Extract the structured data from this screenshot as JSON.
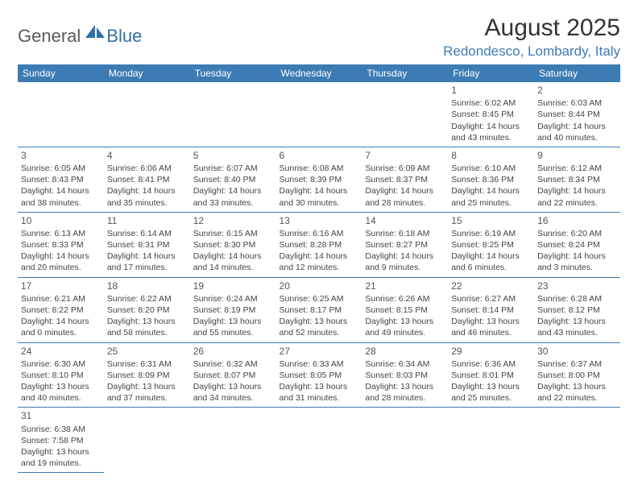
{
  "logo": {
    "general": "General",
    "blue": "Blue"
  },
  "title": "August 2025",
  "location": "Redondesco, Lombardy, Italy",
  "weekdays": [
    "Sunday",
    "Monday",
    "Tuesday",
    "Wednesday",
    "Thursday",
    "Friday",
    "Saturday"
  ],
  "colors": {
    "header_bg": "#3d7bb5",
    "header_fg": "#ffffff",
    "location_color": "#3d7bb5",
    "text_color": "#444444"
  },
  "startOffset": 5,
  "days": [
    {
      "n": "1",
      "sr": "6:02 AM",
      "ss": "8:45 PM",
      "dl": "14 hours and 43 minutes."
    },
    {
      "n": "2",
      "sr": "6:03 AM",
      "ss": "8:44 PM",
      "dl": "14 hours and 40 minutes."
    },
    {
      "n": "3",
      "sr": "6:05 AM",
      "ss": "8:43 PM",
      "dl": "14 hours and 38 minutes."
    },
    {
      "n": "4",
      "sr": "6:06 AM",
      "ss": "8:41 PM",
      "dl": "14 hours and 35 minutes."
    },
    {
      "n": "5",
      "sr": "6:07 AM",
      "ss": "8:40 PM",
      "dl": "14 hours and 33 minutes."
    },
    {
      "n": "6",
      "sr": "6:08 AM",
      "ss": "8:39 PM",
      "dl": "14 hours and 30 minutes."
    },
    {
      "n": "7",
      "sr": "6:09 AM",
      "ss": "8:37 PM",
      "dl": "14 hours and 28 minutes."
    },
    {
      "n": "8",
      "sr": "6:10 AM",
      "ss": "8:36 PM",
      "dl": "14 hours and 25 minutes."
    },
    {
      "n": "9",
      "sr": "6:12 AM",
      "ss": "8:34 PM",
      "dl": "14 hours and 22 minutes."
    },
    {
      "n": "10",
      "sr": "6:13 AM",
      "ss": "8:33 PM",
      "dl": "14 hours and 20 minutes."
    },
    {
      "n": "11",
      "sr": "6:14 AM",
      "ss": "8:31 PM",
      "dl": "14 hours and 17 minutes."
    },
    {
      "n": "12",
      "sr": "6:15 AM",
      "ss": "8:30 PM",
      "dl": "14 hours and 14 minutes."
    },
    {
      "n": "13",
      "sr": "6:16 AM",
      "ss": "8:28 PM",
      "dl": "14 hours and 12 minutes."
    },
    {
      "n": "14",
      "sr": "6:18 AM",
      "ss": "8:27 PM",
      "dl": "14 hours and 9 minutes."
    },
    {
      "n": "15",
      "sr": "6:19 AM",
      "ss": "8:25 PM",
      "dl": "14 hours and 6 minutes."
    },
    {
      "n": "16",
      "sr": "6:20 AM",
      "ss": "8:24 PM",
      "dl": "14 hours and 3 minutes."
    },
    {
      "n": "17",
      "sr": "6:21 AM",
      "ss": "8:22 PM",
      "dl": "14 hours and 0 minutes."
    },
    {
      "n": "18",
      "sr": "6:22 AM",
      "ss": "8:20 PM",
      "dl": "13 hours and 58 minutes."
    },
    {
      "n": "19",
      "sr": "6:24 AM",
      "ss": "8:19 PM",
      "dl": "13 hours and 55 minutes."
    },
    {
      "n": "20",
      "sr": "6:25 AM",
      "ss": "8:17 PM",
      "dl": "13 hours and 52 minutes."
    },
    {
      "n": "21",
      "sr": "6:26 AM",
      "ss": "8:15 PM",
      "dl": "13 hours and 49 minutes."
    },
    {
      "n": "22",
      "sr": "6:27 AM",
      "ss": "8:14 PM",
      "dl": "13 hours and 46 minutes."
    },
    {
      "n": "23",
      "sr": "6:28 AM",
      "ss": "8:12 PM",
      "dl": "13 hours and 43 minutes."
    },
    {
      "n": "24",
      "sr": "6:30 AM",
      "ss": "8:10 PM",
      "dl": "13 hours and 40 minutes."
    },
    {
      "n": "25",
      "sr": "6:31 AM",
      "ss": "8:09 PM",
      "dl": "13 hours and 37 minutes."
    },
    {
      "n": "26",
      "sr": "6:32 AM",
      "ss": "8:07 PM",
      "dl": "13 hours and 34 minutes."
    },
    {
      "n": "27",
      "sr": "6:33 AM",
      "ss": "8:05 PM",
      "dl": "13 hours and 31 minutes."
    },
    {
      "n": "28",
      "sr": "6:34 AM",
      "ss": "8:03 PM",
      "dl": "13 hours and 28 minutes."
    },
    {
      "n": "29",
      "sr": "6:36 AM",
      "ss": "8:01 PM",
      "dl": "13 hours and 25 minutes."
    },
    {
      "n": "30",
      "sr": "6:37 AM",
      "ss": "8:00 PM",
      "dl": "13 hours and 22 minutes."
    },
    {
      "n": "31",
      "sr": "6:38 AM",
      "ss": "7:58 PM",
      "dl": "13 hours and 19 minutes."
    }
  ],
  "labels": {
    "sunrise": "Sunrise:",
    "sunset": "Sunset:",
    "daylight": "Daylight:"
  }
}
